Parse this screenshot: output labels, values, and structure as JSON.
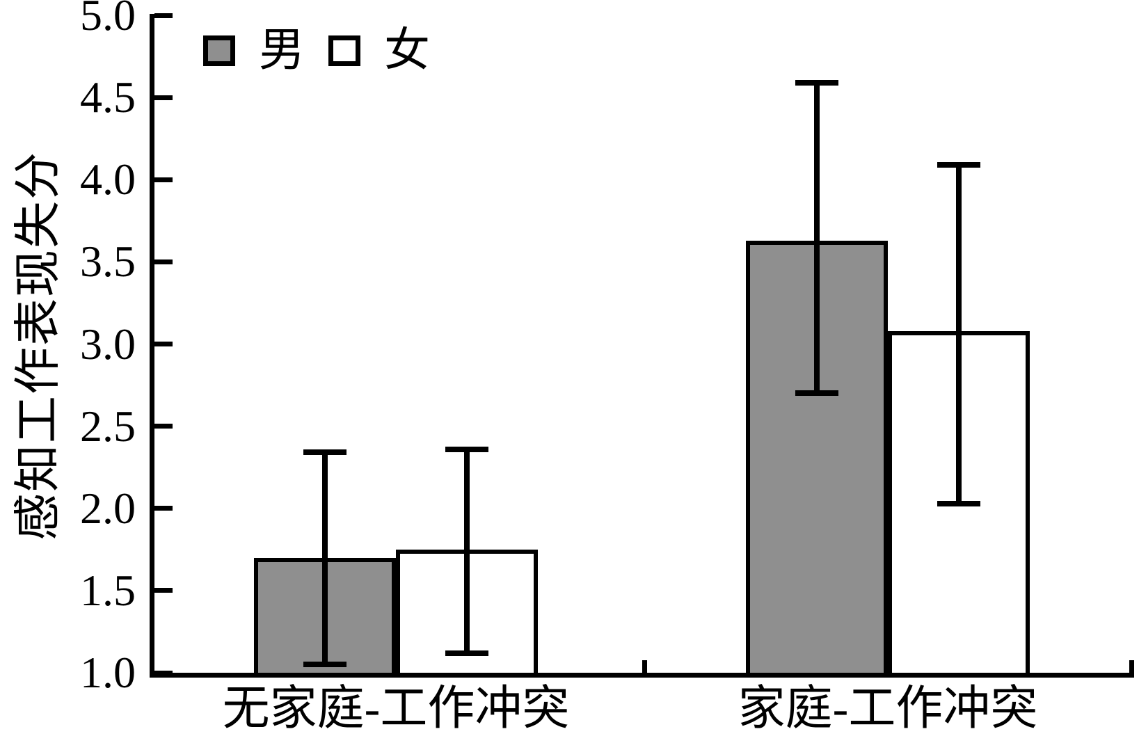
{
  "chart_data": {
    "type": "bar",
    "title": "",
    "ylabel": "感知工作表现失分",
    "xlabel": "",
    "categories": [
      "无家庭-工作冲突",
      "家庭-工作冲突"
    ],
    "series": [
      {
        "key": "male",
        "name": "男",
        "fill": "#8f8f8f",
        "values": [
          1.7,
          3.63
        ],
        "error_low": [
          1.05,
          2.7
        ],
        "error_high": [
          2.34,
          4.59
        ]
      },
      {
        "key": "female",
        "name": "女",
        "fill": "#ffffff",
        "values": [
          1.75,
          3.08
        ],
        "error_low": [
          1.12,
          2.03
        ],
        "error_high": [
          2.36,
          4.09
        ]
      }
    ],
    "ylim": [
      1.0,
      5.0
    ],
    "yticks": [
      "1.0",
      "1.5",
      "2.0",
      "2.5",
      "3.0",
      "3.5",
      "4.0",
      "4.5",
      "5.0"
    ],
    "grid": false,
    "legend_position": "top-left",
    "axis_color": "#000000"
  }
}
